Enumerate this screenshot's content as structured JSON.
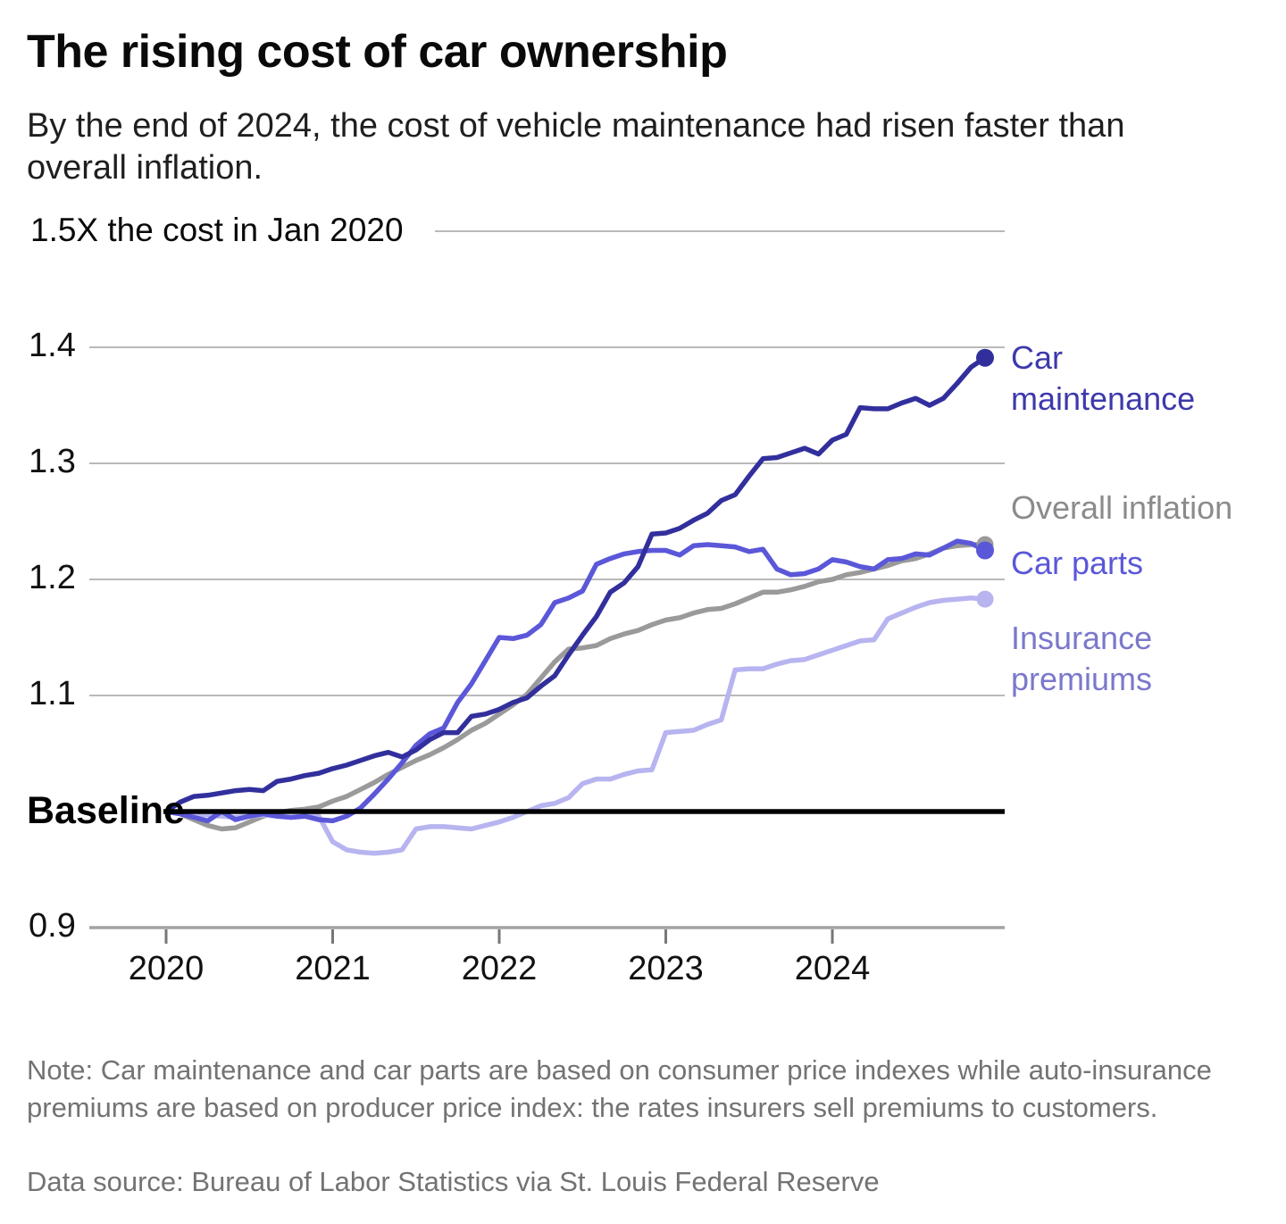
{
  "header": {
    "title": "The rising cost of car ownership",
    "subtitle": "By the end of 2024, the cost of vehicle maintenance had risen faster than overall inflation."
  },
  "y_axis": {
    "top_label": "1.5X the cost in Jan 2020",
    "tick_labels": [
      "1.4",
      "1.3",
      "1.2",
      "1.1"
    ],
    "bottom_tick_label": "0.9",
    "baseline_label": "Baseline"
  },
  "x_axis": {
    "tick_labels": [
      "2020",
      "2021",
      "2022",
      "2023",
      "2024"
    ]
  },
  "note": "Note: Car maintenance and car parts are based on consumer price indexes while auto-insurance premiums are based on producer price index: the rates insurers sell premiums to customers.",
  "source": "Data source: Bureau of Labor Statistics via St. Louis Federal Reserve",
  "chart_data": {
    "type": "line",
    "title": "The rising cost of car ownership",
    "x_unit": "month",
    "ylim": [
      0.9,
      1.5
    ],
    "baseline_value": 1.0,
    "y_gridline_values": [
      1.5,
      1.4,
      1.3,
      1.2,
      1.1
    ],
    "x_tick_years": [
      "2020",
      "2021",
      "2022",
      "2023",
      "2024"
    ],
    "legend_position": "right-end-labels",
    "grid": true,
    "months": [
      "2020-01",
      "2020-02",
      "2020-03",
      "2020-04",
      "2020-05",
      "2020-06",
      "2020-07",
      "2020-08",
      "2020-09",
      "2020-10",
      "2020-11",
      "2020-12",
      "2021-01",
      "2021-02",
      "2021-03",
      "2021-04",
      "2021-05",
      "2021-06",
      "2021-07",
      "2021-08",
      "2021-09",
      "2021-10",
      "2021-11",
      "2021-12",
      "2022-01",
      "2022-02",
      "2022-03",
      "2022-04",
      "2022-05",
      "2022-06",
      "2022-07",
      "2022-08",
      "2022-09",
      "2022-10",
      "2022-11",
      "2022-12",
      "2023-01",
      "2023-02",
      "2023-03",
      "2023-04",
      "2023-05",
      "2023-06",
      "2023-07",
      "2023-08",
      "2023-09",
      "2023-10",
      "2023-11",
      "2023-12",
      "2024-01",
      "2024-02",
      "2024-03",
      "2024-04",
      "2024-05",
      "2024-06",
      "2024-07",
      "2024-08",
      "2024-09",
      "2024-10",
      "2024-11",
      "2024-12"
    ],
    "series": [
      {
        "name": "overall_inflation",
        "label": "Overall inflation",
        "color": "#9a9a9a",
        "label_color": "#8b8b8b",
        "dot_radius": 9.5,
        "values": [
          1.0,
          0.998,
          0.993,
          0.988,
          0.985,
          0.986,
          0.991,
          0.996,
          0.999,
          1.001,
          1.002,
          1.004,
          1.009,
          1.013,
          1.019,
          1.025,
          1.032,
          1.038,
          1.044,
          1.049,
          1.055,
          1.062,
          1.07,
          1.076,
          1.084,
          1.092,
          1.101,
          1.115,
          1.129,
          1.14,
          1.141,
          1.143,
          1.149,
          1.153,
          1.156,
          1.161,
          1.165,
          1.167,
          1.171,
          1.174,
          1.175,
          1.179,
          1.184,
          1.189,
          1.189,
          1.191,
          1.194,
          1.198,
          1.2,
          1.204,
          1.206,
          1.209,
          1.212,
          1.216,
          1.218,
          1.222,
          1.227,
          1.229,
          1.23,
          1.23
        ]
      },
      {
        "name": "insurance_premiums",
        "label": "Insurance premiums",
        "color": "#b7b4f0",
        "label_color": "#7b78cb",
        "dot_radius": 9.5,
        "values": [
          1.0,
          0.999,
          0.998,
          0.997,
          0.996,
          0.995,
          0.996,
          0.997,
          0.996,
          0.995,
          0.996,
          0.996,
          0.974,
          0.967,
          0.965,
          0.964,
          0.965,
          0.967,
          0.985,
          0.987,
          0.987,
          0.986,
          0.985,
          0.988,
          0.991,
          0.995,
          1.0,
          1.005,
          1.007,
          1.012,
          1.024,
          1.028,
          1.028,
          1.032,
          1.035,
          1.036,
          1.068,
          1.069,
          1.07,
          1.075,
          1.079,
          1.122,
          1.123,
          1.123,
          1.127,
          1.13,
          1.131,
          1.135,
          1.139,
          1.143,
          1.147,
          1.148,
          1.166,
          1.171,
          1.176,
          1.18,
          1.182,
          1.183,
          1.184,
          1.183
        ]
      },
      {
        "name": "car_parts",
        "label": "Car parts",
        "color": "#5b57d9",
        "label_color": "#5b57d9",
        "dot_radius": 10,
        "values": [
          1.0,
          0.998,
          0.995,
          0.992,
          1.0,
          0.993,
          0.996,
          0.998,
          0.996,
          0.995,
          0.996,
          0.993,
          0.992,
          0.996,
          1.003,
          1.015,
          1.028,
          1.042,
          1.057,
          1.067,
          1.072,
          1.094,
          1.11,
          1.13,
          1.15,
          1.149,
          1.152,
          1.161,
          1.18,
          1.184,
          1.19,
          1.213,
          1.218,
          1.222,
          1.224,
          1.225,
          1.225,
          1.221,
          1.229,
          1.23,
          1.229,
          1.228,
          1.224,
          1.226,
          1.209,
          1.204,
          1.205,
          1.209,
          1.217,
          1.215,
          1.211,
          1.209,
          1.217,
          1.218,
          1.222,
          1.221,
          1.227,
          1.233,
          1.231,
          1.225
        ]
      },
      {
        "name": "car_maintenance",
        "label": "Car maintenance",
        "color": "#322f9d",
        "label_color": "#3d39ab",
        "dot_radius": 10,
        "values": [
          1.0,
          1.008,
          1.013,
          1.014,
          1.016,
          1.018,
          1.019,
          1.018,
          1.026,
          1.028,
          1.031,
          1.033,
          1.037,
          1.04,
          1.044,
          1.048,
          1.051,
          1.047,
          1.053,
          1.062,
          1.068,
          1.068,
          1.082,
          1.084,
          1.088,
          1.094,
          1.098,
          1.108,
          1.117,
          1.135,
          1.152,
          1.168,
          1.189,
          1.197,
          1.211,
          1.239,
          1.24,
          1.244,
          1.251,
          1.257,
          1.268,
          1.273,
          1.289,
          1.304,
          1.305,
          1.309,
          1.313,
          1.308,
          1.32,
          1.325,
          1.348,
          1.347,
          1.347,
          1.352,
          1.356,
          1.35,
          1.356,
          1.369,
          1.383,
          1.391
        ]
      }
    ]
  }
}
